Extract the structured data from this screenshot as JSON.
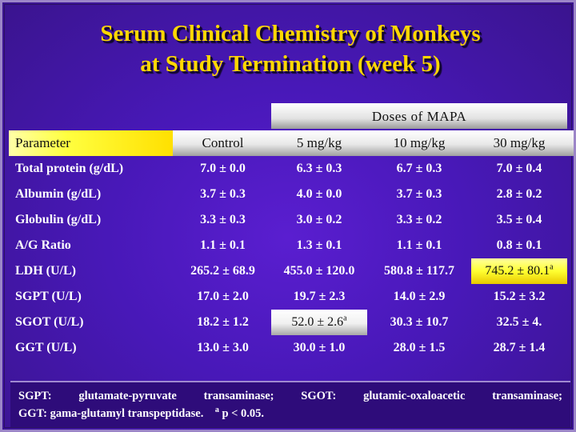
{
  "title": {
    "line1": "Serum Clinical Chemistry of Monkeys",
    "line2": "at Study Termination (week 5)"
  },
  "table": {
    "doses_header": "Doses of MAPA",
    "columns": [
      "Parameter",
      "Control",
      "5 mg/kg",
      "10 mg/kg",
      "30 mg/kg"
    ],
    "rows": [
      {
        "parameter": "Total protein (g/dL)",
        "values": [
          "7.0 ± 0.0",
          "6.3 ± 0.3",
          "6.7 ± 0.3",
          "7.0 ± 0.4"
        ],
        "sup": [
          "",
          "",
          "",
          ""
        ]
      },
      {
        "parameter": "Albumin (g/dL)",
        "values": [
          "3.7 ± 0.3",
          "4.0 ± 0.0",
          "3.7 ± 0.3",
          "2.8 ± 0.2"
        ],
        "sup": [
          "",
          "",
          "",
          ""
        ]
      },
      {
        "parameter": "Globulin (g/dL)",
        "values": [
          "3.3 ± 0.3",
          "3.0 ± 0.2",
          "3.3 ± 0.2",
          "3.5 ± 0.4"
        ],
        "sup": [
          "",
          "",
          "",
          ""
        ]
      },
      {
        "parameter": "A/G Ratio",
        "values": [
          "1.1 ± 0.1",
          "1.3 ± 0.1",
          "1.1 ± 0.1",
          "0.8 ± 0.1"
        ],
        "sup": [
          "",
          "",
          "",
          ""
        ]
      },
      {
        "parameter": "LDH (U/L)",
        "values": [
          "265.2 ± 68.9",
          "455.0 ± 120.0",
          "580.8 ± 117.7",
          "745.2 ± 80.1"
        ],
        "sup": [
          "",
          "",
          "",
          "a"
        ]
      },
      {
        "parameter": "SGPT (U/L)",
        "values": [
          "17.0 ± 2.0",
          "19.7 ± 2.3",
          "14.0 ± 2.9",
          "15.2 ± 3.2"
        ],
        "sup": [
          "",
          "",
          "",
          ""
        ]
      },
      {
        "parameter": "SGOT (U/L)",
        "values": [
          "18.2 ± 1.2",
          "52.0 ± 2.6",
          "30.3 ± 10.7",
          "32.5 ± 4."
        ],
        "sup": [
          "",
          "a",
          "",
          ""
        ]
      },
      {
        "parameter": "GGT (U/L)",
        "values": [
          "13.0 ± 3.0",
          "30.0 ± 1.0",
          "28.0 ± 1.5",
          "28.7 ± 1.4"
        ],
        "sup": [
          "",
          "",
          "",
          ""
        ]
      }
    ]
  },
  "footnote": {
    "line1": "SGPT: glutamate-pyruvate transaminase; SGOT: glutamic-oxaloacetic transaminase;",
    "line2": "GGT: gama-glutamyl transpeptidase.",
    "sig_marker": "a",
    "sig_text": "p < 0.05."
  },
  "colors": {
    "background": "#4818b8",
    "title": "#ffd800",
    "highlight_yellow": "#ffff30",
    "highlight_white": "#ffffff"
  }
}
